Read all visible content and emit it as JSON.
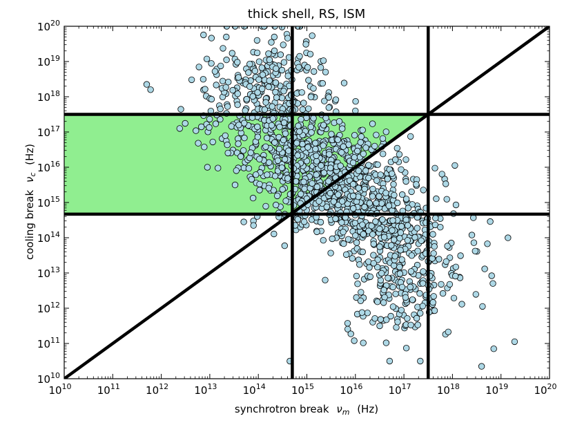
{
  "chart_data": {
    "type": "scatter",
    "title": "thick shell, RS, ISM",
    "xlabel": "synchrotron break",
    "xlabel_symbol": "ν",
    "xlabel_subscript": "m",
    "xlabel_unit": "(Hz)",
    "ylabel": "cooling break",
    "ylabel_symbol": "ν",
    "ylabel_subscript": "c",
    "ylabel_unit": "(Hz)",
    "xscale": "log",
    "yscale": "log",
    "xlim_exp": [
      10,
      20
    ],
    "ylim_exp": [
      10,
      20
    ],
    "x_tick_exps": [
      "10",
      "11",
      "12",
      "13",
      "14",
      "15",
      "16",
      "17",
      "18",
      "19",
      "20"
    ],
    "y_tick_exps": [
      "10",
      "11",
      "12",
      "13",
      "14",
      "15",
      "16",
      "17",
      "18",
      "19",
      "20"
    ],
    "tick_base": "10",
    "reference_lines": {
      "vertical_log10": [
        14.7,
        17.5
      ],
      "horizontal_log10": [
        14.67,
        17.5
      ],
      "diagonal": "nu_c = nu_m"
    },
    "shaded_region": {
      "description": "slow cooling region above diagonal, between the two horizontal lines, left of nu_c = nu_m",
      "y_log10_range": [
        14.67,
        17.5
      ],
      "color": "#90ee90"
    },
    "marker_face_color": "#add8e6",
    "marker_edge_color": "#000000",
    "cluster": {
      "core_center_log10": [
        15.6,
        15.6
      ],
      "core_spread_log10": [
        1.1,
        1.15
      ],
      "n_core": 1050,
      "upper_tail_center_log10": [
        14.2,
        18.4
      ],
      "upper_tail_spread_log10": [
        0.6,
        0.8
      ],
      "n_upper_tail": 230,
      "lower_tail_center_log10": [
        17.0,
        12.7
      ],
      "lower_tail_spread_log10": [
        0.6,
        0.8
      ],
      "n_lower_tail": 200,
      "x_range_log10": [
        11.7,
        19.3
      ],
      "y_range_log10": [
        10.5,
        20.0
      ]
    },
    "points_explicit": [
      {
        "x": 11.7,
        "y": 18.35
      },
      {
        "x": 11.78,
        "y": 18.2
      },
      {
        "x": 12.38,
        "y": 17.1
      },
      {
        "x": 12.95,
        "y": 16.0
      },
      {
        "x": 13.7,
        "y": 14.45
      },
      {
        "x": 13.9,
        "y": 14.35
      },
      {
        "x": 19.28,
        "y": 11.05
      },
      {
        "x": 18.85,
        "y": 10.85
      },
      {
        "x": 18.6,
        "y": 10.35
      },
      {
        "x": 14.42,
        "y": 14.7
      },
      {
        "x": 18.05,
        "y": 16.05
      },
      {
        "x": 16.0,
        "y": 17.6
      },
      {
        "x": 17.05,
        "y": 15.1
      },
      {
        "x": 17.75,
        "y": 14.3
      },
      {
        "x": 17.45,
        "y": 13.55
      },
      {
        "x": 16.5,
        "y": 11.5
      }
    ]
  }
}
